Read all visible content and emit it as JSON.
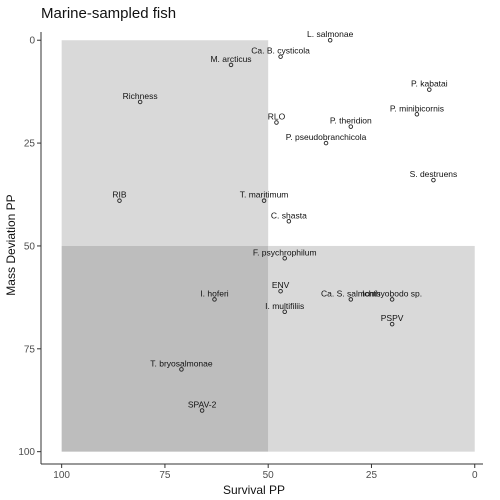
{
  "chart_data": {
    "type": "scatter",
    "title": "Marine-sampled fish",
    "xlabel": "Survival PP",
    "ylabel": "Mass Deviation PP",
    "xlim": [
      105,
      -2
    ],
    "ylim": [
      -2,
      103
    ],
    "x_reversed": true,
    "y_reversed": true,
    "x_ticks": [
      100,
      75,
      50,
      25,
      0
    ],
    "y_ticks": [
      0,
      25,
      50,
      75,
      100
    ],
    "grid": false,
    "regions": [
      {
        "x_range": [
          100,
          50
        ],
        "y_range": [
          0,
          50
        ],
        "color": "#d9d9d9"
      },
      {
        "x_range": [
          50,
          0
        ],
        "y_range": [
          50,
          100
        ],
        "color": "#d9d9d9"
      },
      {
        "x_range": [
          100,
          50
        ],
        "y_range": [
          50,
          100
        ],
        "color": "#bdbdbd"
      }
    ],
    "points": [
      {
        "label": "L. salmonae",
        "x": 35,
        "y": 0
      },
      {
        "label": "Ca. B. cysticola",
        "x": 47,
        "y": 4
      },
      {
        "label": "M. arcticus",
        "x": 59,
        "y": 6
      },
      {
        "label": "P. kabatai",
        "x": 11,
        "y": 12
      },
      {
        "label": "Richness",
        "x": 81,
        "y": 15
      },
      {
        "label": "P. minibicornis",
        "x": 14,
        "y": 18
      },
      {
        "label": "RLO",
        "x": 48,
        "y": 20
      },
      {
        "label": "P. theridion",
        "x": 30,
        "y": 21
      },
      {
        "label": "P. pseudobranchicola",
        "x": 36,
        "y": 25
      },
      {
        "label": "S. destruens",
        "x": 10,
        "y": 34
      },
      {
        "label": "RIB",
        "x": 86,
        "y": 39
      },
      {
        "label": "T. maritimum",
        "x": 51,
        "y": 39
      },
      {
        "label": "C. shasta",
        "x": 45,
        "y": 44
      },
      {
        "label": "F. psychrophilum",
        "x": 46,
        "y": 53
      },
      {
        "label": "ENV",
        "x": 47,
        "y": 61
      },
      {
        "label": "I. hoferi",
        "x": 63,
        "y": 63
      },
      {
        "label": "Ca. S. salmonis",
        "x": 30,
        "y": 63
      },
      {
        "label": "Ichthyobodo sp.",
        "x": 20,
        "y": 63
      },
      {
        "label": "I. multifiliis",
        "x": 46,
        "y": 66
      },
      {
        "label": "PSPV",
        "x": 20,
        "y": 69
      },
      {
        "label": "T. bryosalmonae",
        "x": 71,
        "y": 80
      },
      {
        "label": "SPAV-2",
        "x": 66,
        "y": 90
      }
    ]
  },
  "colors": {
    "light_region": "#d9d9d9",
    "dark_region": "#bdbdbd",
    "point_stroke": "#222222",
    "axis": "#333333"
  }
}
